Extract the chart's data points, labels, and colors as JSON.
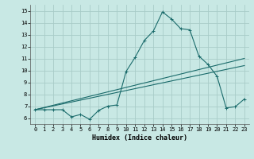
{
  "title": "",
  "xlabel": "Humidex (Indice chaleur)",
  "ylabel": "",
  "xlim": [
    -0.5,
    23.5
  ],
  "ylim": [
    5.5,
    15.5
  ],
  "xticks": [
    0,
    1,
    2,
    3,
    4,
    5,
    6,
    7,
    8,
    9,
    10,
    11,
    12,
    13,
    14,
    15,
    16,
    17,
    18,
    19,
    20,
    21,
    22,
    23
  ],
  "yticks": [
    6,
    7,
    8,
    9,
    10,
    11,
    12,
    13,
    14,
    15
  ],
  "bg_color": "#c8e8e4",
  "grid_color": "#a8ccc8",
  "line_color": "#1a6b6b",
  "line1_x": [
    0,
    1,
    2,
    3,
    4,
    5,
    6,
    7,
    8,
    9,
    10,
    11,
    12,
    13,
    14,
    15,
    16,
    17,
    18,
    19,
    20,
    21,
    22,
    23
  ],
  "line1_y": [
    6.7,
    6.7,
    6.7,
    6.7,
    6.1,
    6.3,
    5.9,
    6.65,
    7.0,
    7.1,
    9.9,
    11.1,
    12.5,
    13.3,
    14.9,
    14.3,
    13.5,
    13.4,
    11.2,
    10.5,
    9.5,
    6.85,
    6.95,
    7.6
  ],
  "line2_x": [
    0,
    23
  ],
  "line2_y": [
    6.7,
    11.0
  ],
  "line3_x": [
    0,
    23
  ],
  "line3_y": [
    6.7,
    10.4
  ],
  "marker": "+"
}
